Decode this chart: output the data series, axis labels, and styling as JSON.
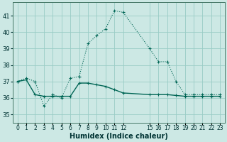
{
  "xlabel": "Humidex (Indice chaleur)",
  "bg_color": "#cce8e4",
  "grid_color": "#99ccc6",
  "line_color": "#006655",
  "ylim": [
    34.5,
    41.8
  ],
  "xlim": [
    -0.5,
    23.5
  ],
  "yticks": [
    35,
    36,
    37,
    38,
    39,
    40,
    41
  ],
  "xticks": [
    0,
    1,
    2,
    3,
    4,
    5,
    6,
    7,
    8,
    9,
    10,
    11,
    12,
    15,
    16,
    17,
    18,
    19,
    20,
    21,
    22,
    23
  ],
  "xtick_labels": [
    "0",
    "1",
    "2",
    "3",
    "4",
    "5",
    "6",
    "7",
    "8",
    "9",
    "10",
    "11",
    "12",
    "15",
    "16",
    "17",
    "18",
    "19",
    "20",
    "21",
    "22",
    "23"
  ],
  "line1_x": [
    0,
    1,
    2,
    3,
    4,
    5,
    6,
    7,
    8,
    9,
    10,
    11,
    12,
    15,
    16,
    17,
    18,
    19,
    20,
    21,
    22,
    23
  ],
  "line1_y": [
    37.0,
    37.2,
    37.0,
    35.5,
    36.2,
    36.0,
    37.2,
    37.3,
    39.3,
    39.8,
    40.2,
    41.3,
    41.2,
    39.0,
    38.2,
    38.2,
    37.0,
    36.2,
    36.2,
    36.2,
    36.2,
    36.2
  ],
  "line2_x": [
    0,
    1,
    2,
    3,
    4,
    5,
    6,
    7,
    8,
    9,
    10,
    11,
    12,
    15,
    16,
    17,
    18,
    19,
    20,
    21,
    22,
    23
  ],
  "line2_y": [
    37.0,
    37.1,
    36.2,
    36.1,
    36.1,
    36.1,
    36.1,
    36.9,
    36.9,
    36.8,
    36.7,
    36.5,
    36.3,
    36.2,
    36.2,
    36.2,
    36.15,
    36.1,
    36.1,
    36.1,
    36.1,
    36.1
  ]
}
